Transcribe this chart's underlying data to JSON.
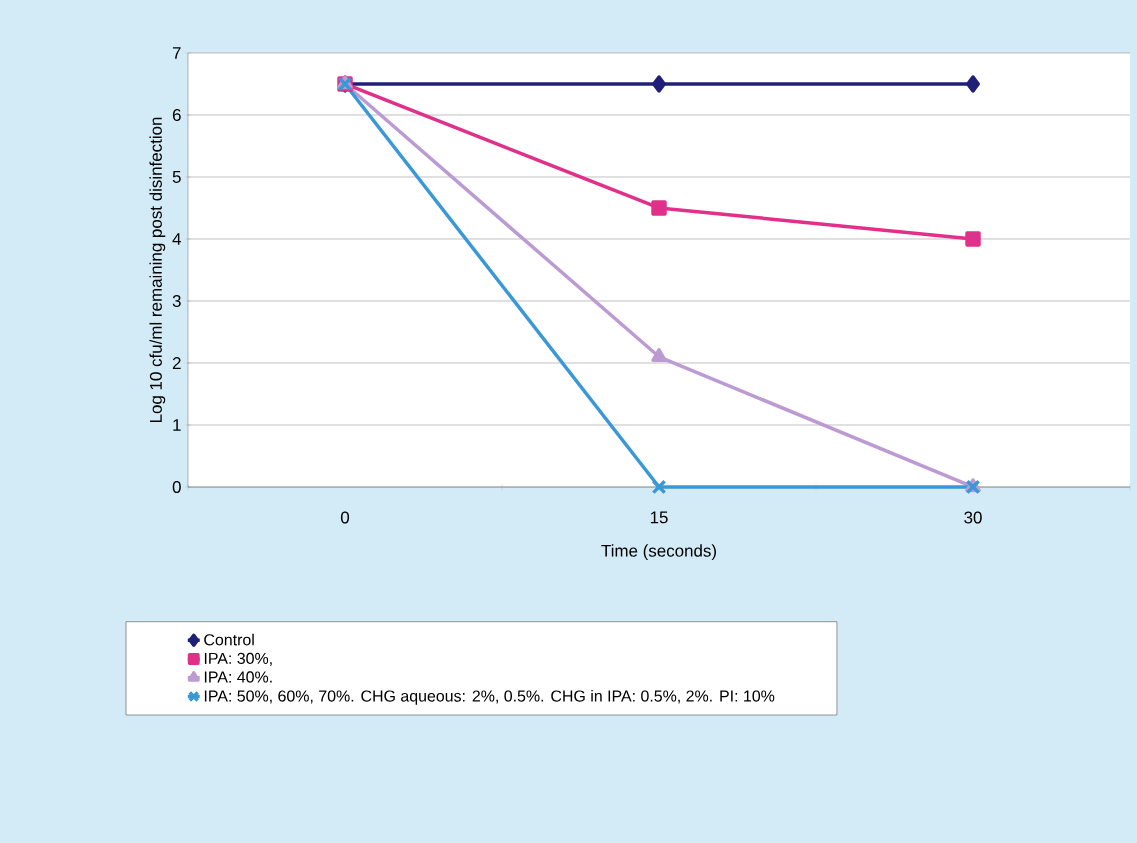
{
  "chart_data": {
    "type": "line",
    "xlabel": "Time (seconds)",
    "ylabel": "Log 10 cfu/ml remaining post disinfection",
    "categories": [
      "0",
      "15",
      "30"
    ],
    "ylim": [
      0,
      7
    ],
    "yticks": [
      0,
      1,
      2,
      3,
      4,
      5,
      6,
      7
    ],
    "grid": "y",
    "legend": "bottom",
    "series": [
      {
        "name": "Control",
        "color": "#1f1f78",
        "marker": "diamond",
        "values": [
          6.5,
          6.5,
          6.5
        ]
      },
      {
        "name": "IPA: 30%,",
        "color": "#e0308a",
        "marker": "square",
        "values": [
          6.5,
          4.5,
          4.0
        ]
      },
      {
        "name": "IPA: 40%.",
        "color": "#bb9bd2",
        "marker": "triangle",
        "values": [
          6.5,
          2.1,
          0
        ]
      },
      {
        "name": "IPA: 50%, 60%, 70%. CHG aqueous: 2%, 0.5%. CHG in IPA: 0.5%, 2%. PI: 10%",
        "color": "#3a98d6",
        "marker": "cross",
        "values": [
          6.5,
          0,
          0
        ]
      }
    ]
  }
}
